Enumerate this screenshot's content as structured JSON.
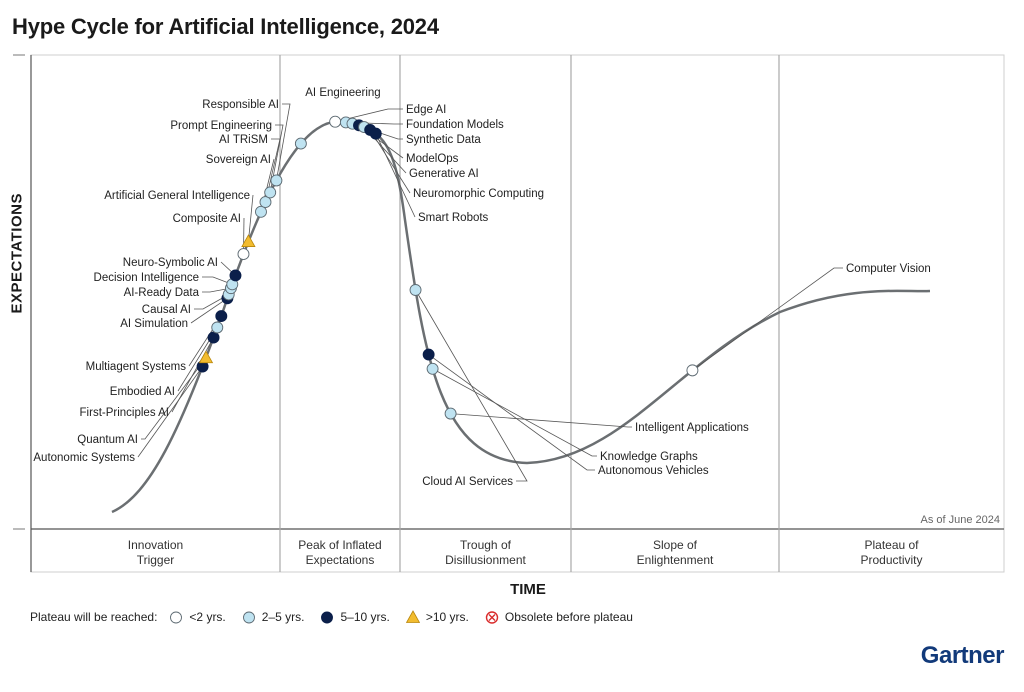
{
  "chart_data": {
    "type": "hype-cycle",
    "title": "Hype Cycle for Artificial Intelligence, 2024",
    "ylabel": "EXPECTATIONS",
    "xlabel": "TIME",
    "as_of": "As of June 2024",
    "phases": [
      {
        "label": [
          "Innovation",
          "Trigger"
        ]
      },
      {
        "label": [
          "Peak of Inflated",
          "Expectations"
        ]
      },
      {
        "label": [
          "Trough of",
          "Disillusionment"
        ]
      },
      {
        "label": [
          "Slope of",
          "Enlightenment"
        ]
      },
      {
        "label": [
          "Plateau of",
          "Productivity"
        ]
      }
    ],
    "categories": {
      "lt2": {
        "label": "<2 yrs.",
        "marker": "circle",
        "color": "#ffffff"
      },
      "2to5": {
        "label": "2–5 yrs.",
        "marker": "circle",
        "color": "#bfe3f1"
      },
      "5to10": {
        "label": "5–10 yrs.",
        "marker": "circle",
        "color": "#0b1f4a"
      },
      "gt10": {
        "label": ">10 yrs.",
        "marker": "triangle",
        "color": "#f2bc2f"
      },
      "obsolete": {
        "label": "Obsolete before plateau",
        "marker": "x-circle",
        "color": "#d92b2b"
      }
    },
    "legend_title": "Plateau will be reached:",
    "technologies": [
      {
        "name": "Autonomic Systems",
        "cat": "5to10",
        "t": 0.13
      },
      {
        "name": "Quantum AI",
        "cat": "gt10",
        "t": 0.137
      },
      {
        "name": "First-Principles AI",
        "cat": "5to10",
        "t": 0.153
      },
      {
        "name": "Embodied AI",
        "cat": "2to5",
        "t": 0.161
      },
      {
        "name": "Multiagent Systems",
        "cat": "5to10",
        "t": 0.17
      },
      {
        "name": "AI Simulation",
        "cat": "5to10",
        "t": 0.184
      },
      {
        "name": "Causal AI",
        "cat": "2to5",
        "t": 0.187
      },
      {
        "name": "AI-Ready Data",
        "cat": "2to5",
        "t": 0.192
      },
      {
        "name": "Decision Intelligence",
        "cat": "2to5",
        "t": 0.195
      },
      {
        "name": "Neuro-Symbolic AI",
        "cat": "5to10",
        "t": 0.202
      },
      {
        "name": "Composite AI",
        "cat": "lt2",
        "t": 0.219
      },
      {
        "name": "Artificial General Intelligence",
        "cat": "gt10",
        "t": 0.229
      },
      {
        "name": "Sovereign AI",
        "cat": "2to5",
        "t": 0.253
      },
      {
        "name": "AI TRiSM",
        "cat": "2to5",
        "t": 0.261
      },
      {
        "name": "Prompt Engineering",
        "cat": "2to5",
        "t": 0.269
      },
      {
        "name": "Responsible AI",
        "cat": "2to5",
        "t": 0.279
      },
      {
        "name": "AI Engineering",
        "cat": "2to5",
        "t": 0.312
      },
      {
        "name": "Edge AI",
        "cat": "lt2",
        "t": 0.343
      },
      {
        "name": "Foundation Models",
        "cat": "2to5",
        "t": 0.351
      },
      {
        "name": "Synthetic Data",
        "cat": "2to5",
        "t": 0.356
      },
      {
        "name": "ModelOps",
        "cat": "5to10",
        "t": 0.361
      },
      {
        "name": "Generative AI",
        "cat": "2to5",
        "t": 0.365
      },
      {
        "name": "Neuromorphic Computing",
        "cat": "5to10",
        "t": 0.37
      },
      {
        "name": "Smart Robots",
        "cat": "5to10",
        "t": 0.375
      },
      {
        "name": "Cloud AI Services",
        "cat": "2to5",
        "t": 0.497
      },
      {
        "name": "Autonomous Vehicles",
        "cat": "5to10",
        "t": 0.546
      },
      {
        "name": "Knowledge Graphs",
        "cat": "2to5",
        "t": 0.557
      },
      {
        "name": "Intelligent Applications",
        "cat": "2to5",
        "t": 0.593
      },
      {
        "name": "Computer Vision",
        "cat": "lt2",
        "t": 0.808
      }
    ]
  },
  "brand": "Gartner"
}
